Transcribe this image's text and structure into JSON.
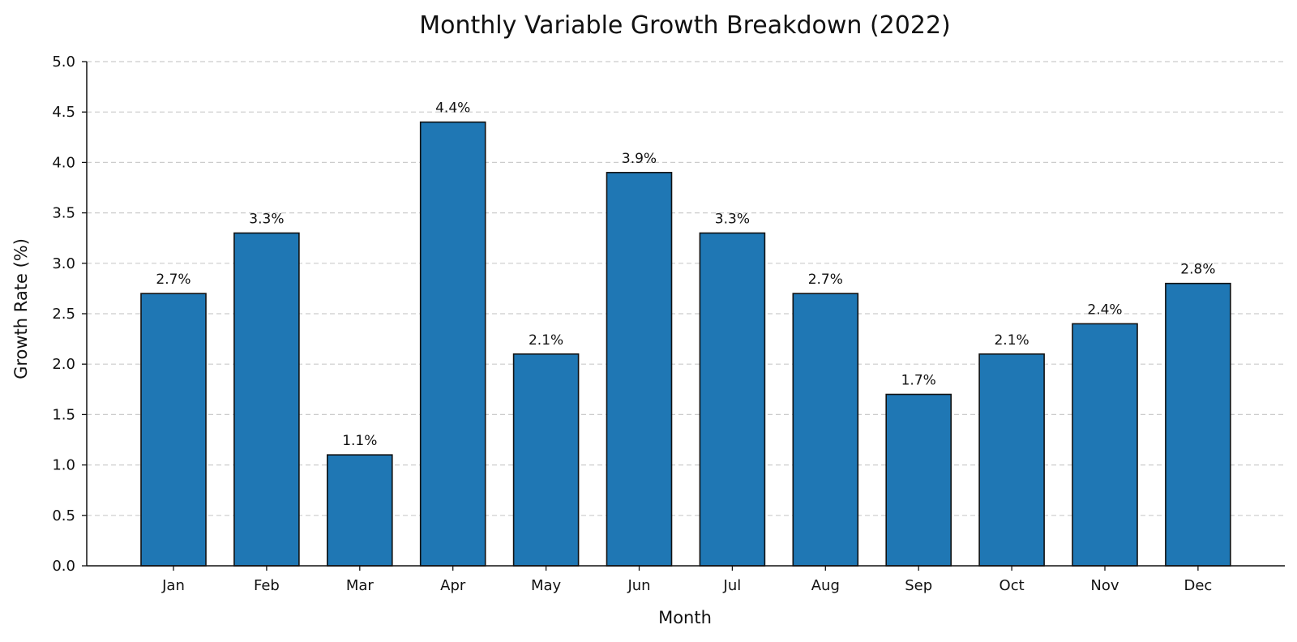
{
  "chart_data": {
    "type": "bar",
    "title": "Monthly Variable Growth Breakdown (2022)",
    "xlabel": "Month",
    "ylabel": "Growth Rate (%)",
    "categories": [
      "Jan",
      "Feb",
      "Mar",
      "Apr",
      "May",
      "Jun",
      "Jul",
      "Aug",
      "Sep",
      "Oct",
      "Nov",
      "Dec"
    ],
    "values": [
      2.7,
      3.3,
      1.1,
      4.4,
      2.1,
      3.9,
      3.3,
      2.7,
      1.7,
      2.1,
      2.4,
      2.8
    ],
    "value_labels": [
      "2.7%",
      "3.3%",
      "1.1%",
      "4.4%",
      "2.1%",
      "3.9%",
      "3.3%",
      "2.7%",
      "1.7%",
      "2.1%",
      "2.4%",
      "2.8%"
    ],
    "ylim": [
      0,
      5.0
    ],
    "yticks": [
      0.0,
      0.5,
      1.0,
      1.5,
      2.0,
      2.5,
      3.0,
      3.5,
      4.0,
      4.5,
      5.0
    ],
    "ytick_labels": [
      "0.0",
      "0.5",
      "1.0",
      "1.5",
      "2.0",
      "2.5",
      "3.0",
      "3.5",
      "4.0",
      "4.5",
      "5.0"
    ],
    "grid": "y-dashed",
    "bar_color": "#1f77b4",
    "bar_edge_color": "#111111",
    "grid_color": "#cccccc"
  }
}
